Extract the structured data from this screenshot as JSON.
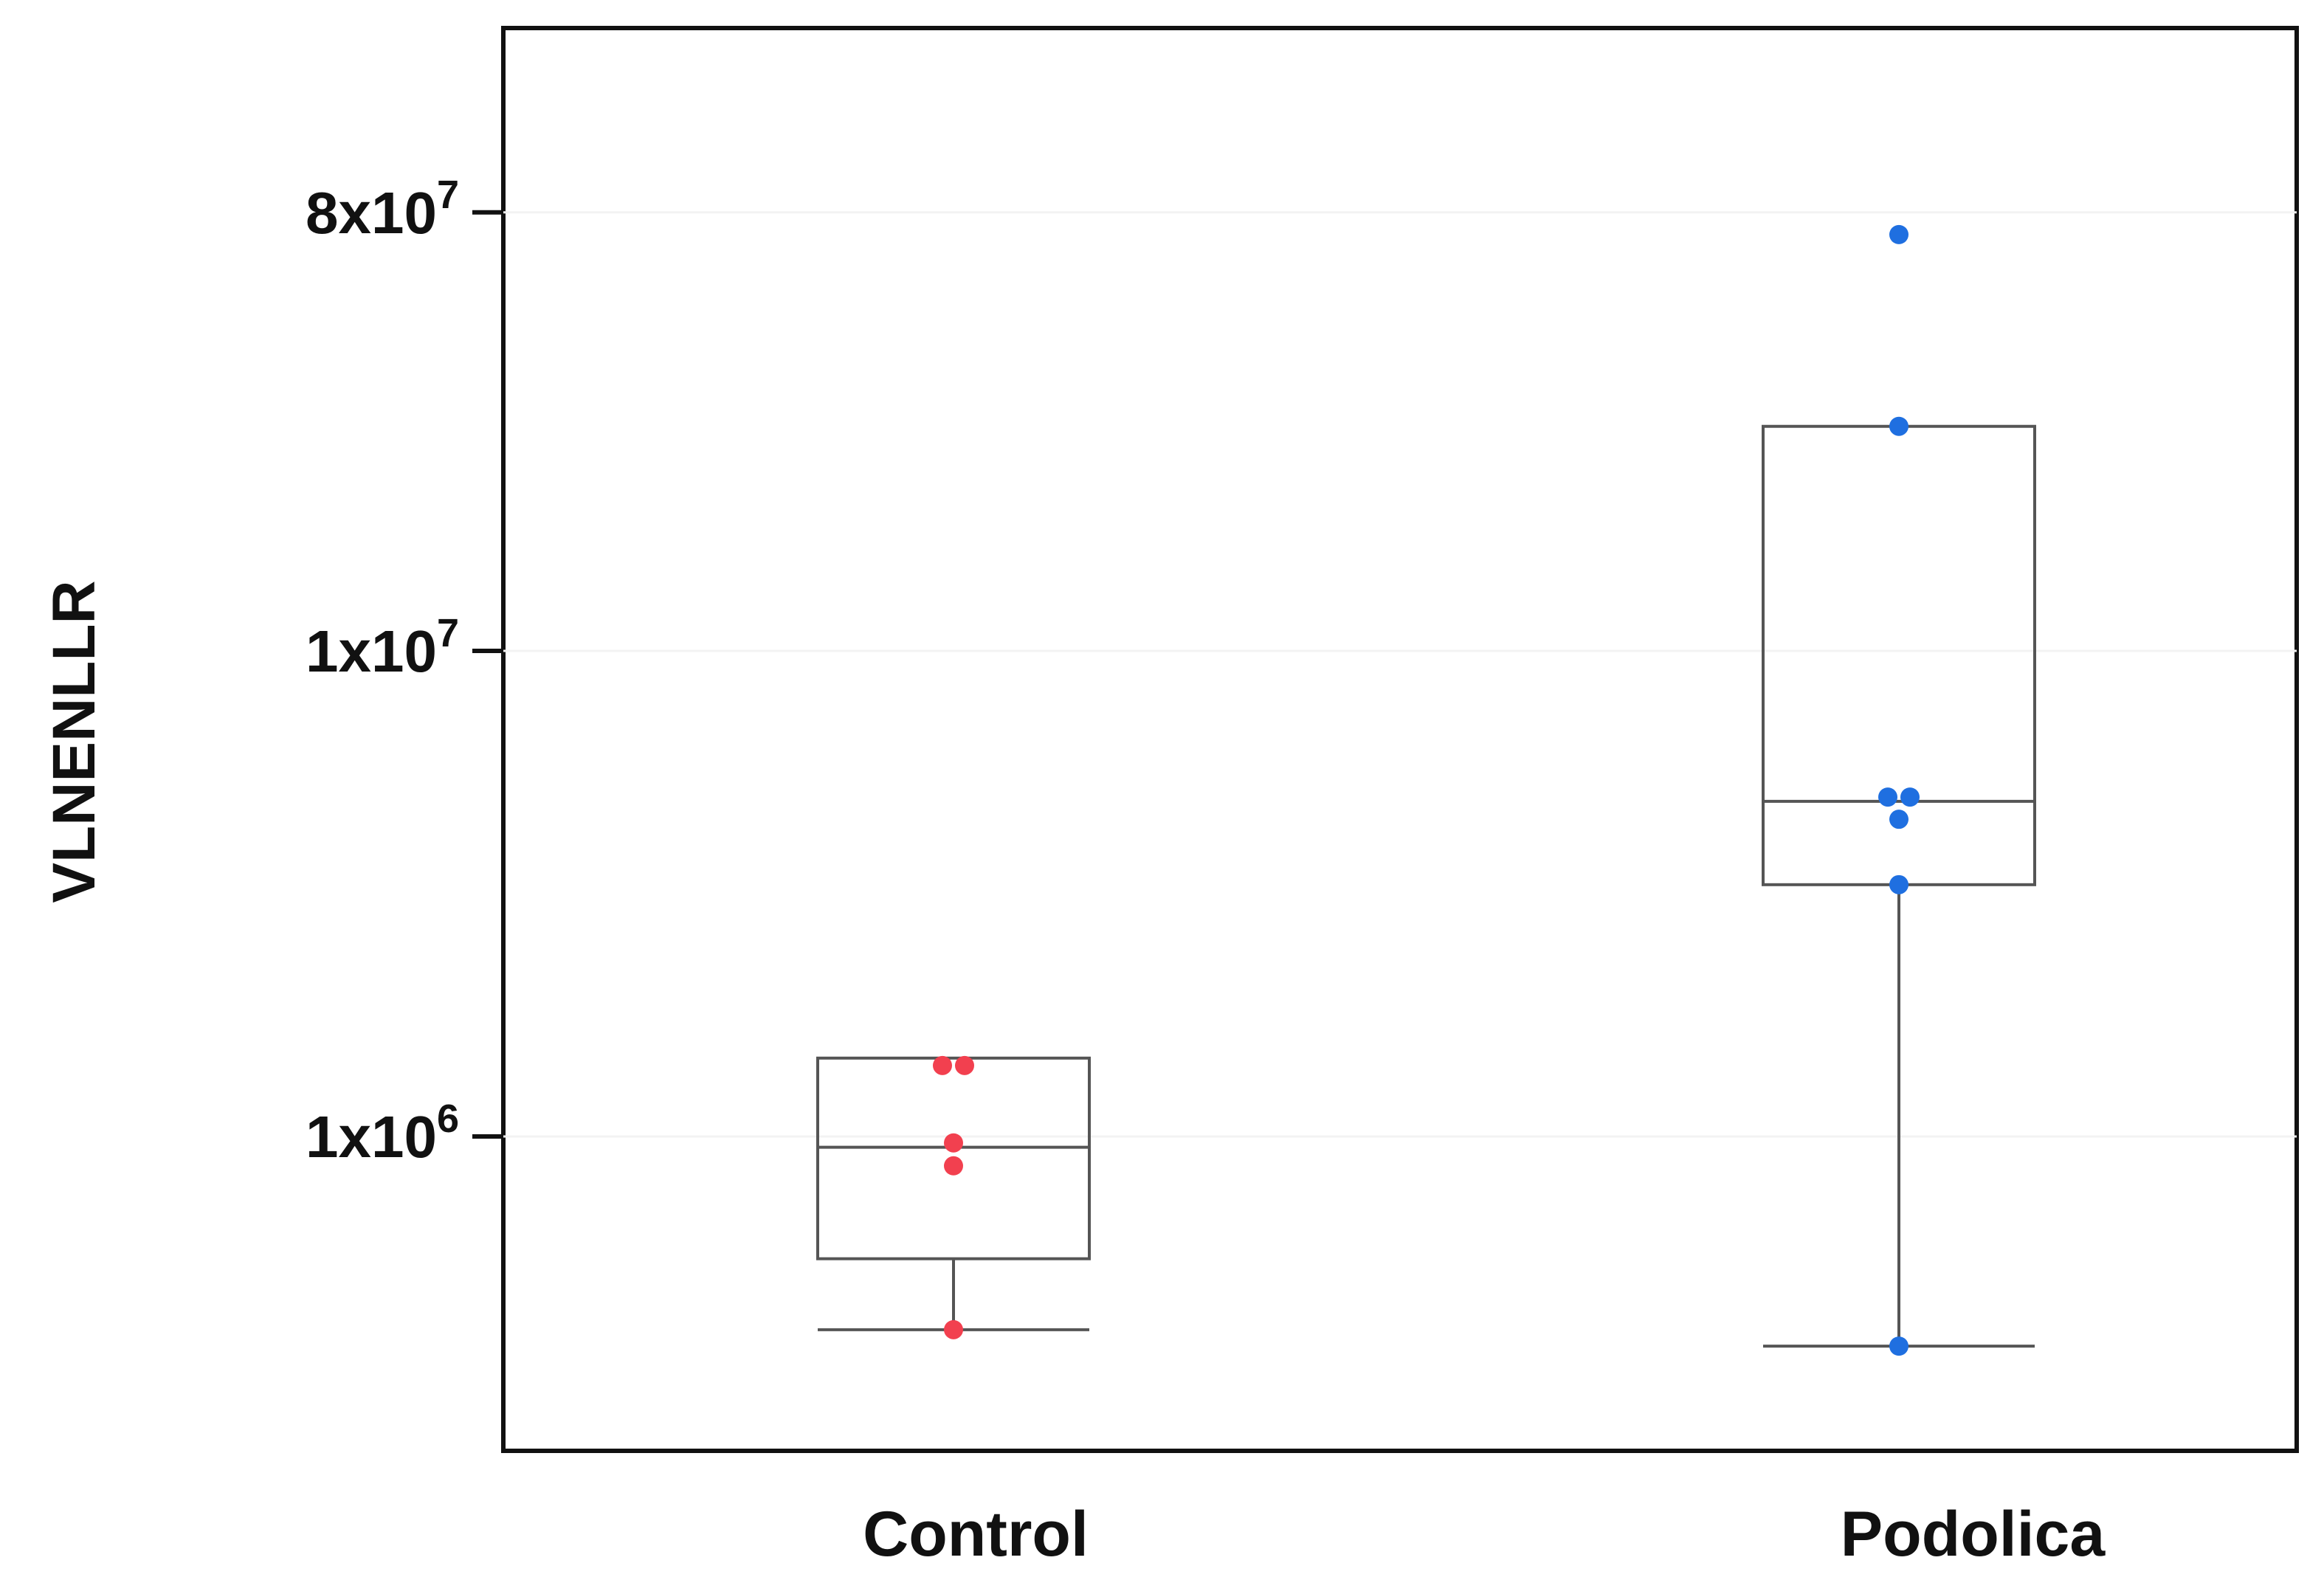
{
  "chart_data": {
    "type": "box",
    "ylabel": "VLNENLLR",
    "yscale": "log",
    "ylim": [
      200000,
      150000000
    ],
    "yticks": [
      {
        "value": 80000000,
        "mantissa": "8x10",
        "exponent": "7"
      },
      {
        "value": 10000000,
        "mantissa": "1x10",
        "exponent": "7"
      },
      {
        "value": 1000000,
        "mantissa": "1x10",
        "exponent": "6"
      }
    ],
    "categories": [
      "Control",
      "Podolica"
    ],
    "groups": [
      {
        "name": "Control",
        "color": "#f2404f",
        "box": {
          "whisker_low": 400000,
          "q1": 560000,
          "median": 950000,
          "q3": 1450000,
          "whisker_high": 1450000
        },
        "points": [
          1400000,
          1400000,
          970000,
          870000,
          400000
        ]
      },
      {
        "name": "Podolica",
        "color": "#1f6fe0",
        "box": {
          "whisker_low": 370000,
          "q1": 3300000,
          "median": 4900000,
          "q3": 29000000,
          "whisker_high": 29000000
        },
        "points": [
          72000000,
          29000000,
          5000000,
          5000000,
          4500000,
          3300000,
          370000
        ]
      }
    ],
    "grid": false,
    "legend": "none"
  }
}
